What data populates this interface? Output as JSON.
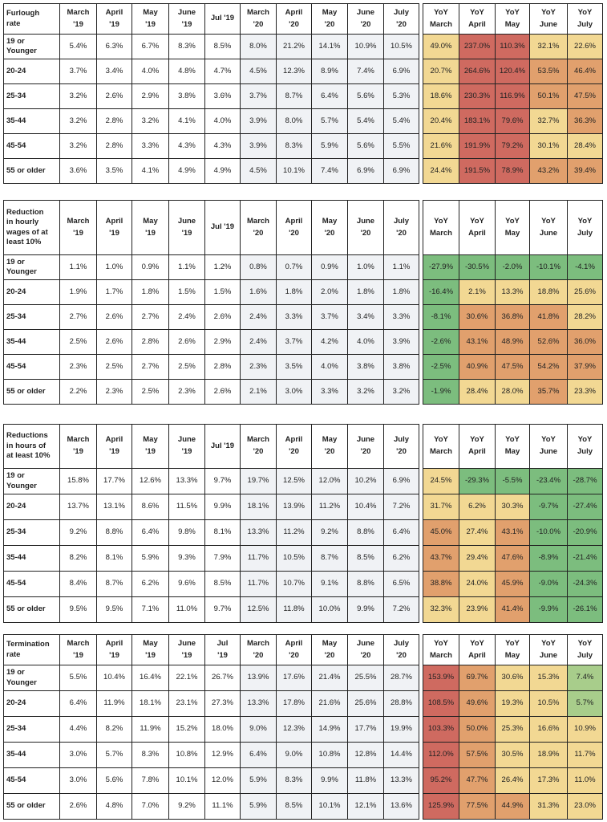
{
  "colors": {
    "red": "#cf6a60",
    "orange": "#e1a06d",
    "yellow": "#f2d893",
    "lightgreen": "#a8cd8b",
    "green": "#7cbd7e",
    "current_year_shade": "#f0f2f5"
  },
  "columns": [
    "March\n'19",
    "April\n'19",
    "May\n'19",
    "June\n'19",
    "Jul '19",
    "March\n'20",
    "April\n'20",
    "May\n'20",
    "June\n'20",
    "July\n'20"
  ],
  "yoy_columns": [
    "YoY\nMarch",
    "YoY\nApril",
    "YoY\nMay",
    "YoY\nJune",
    "YoY\nJuly"
  ],
  "sections": [
    {
      "title": "Furlough\nrate",
      "columns": [
        "March\n'19",
        "April\n'19",
        "May\n'19",
        "June\n'19",
        "Jul '19",
        "March\n'20",
        "April\n'20",
        "May\n'20",
        "June\n'20",
        "July\n'20"
      ],
      "rows": [
        {
          "label": "19 or\nYounger",
          "values": [
            "5.4%",
            "6.3%",
            "6.7%",
            "8.3%",
            "8.5%",
            "8.0%",
            "21.2%",
            "14.1%",
            "10.9%",
            "10.5%"
          ],
          "yoy": [
            "49.0%",
            "237.0%",
            "110.3%",
            "32.1%",
            "22.6%"
          ],
          "yoy_colors": [
            "#f2d893",
            "#cf6a60",
            "#cf6a60",
            "#f2d893",
            "#f2d893"
          ]
        },
        {
          "label": "20-24",
          "values": [
            "3.7%",
            "3.4%",
            "4.0%",
            "4.8%",
            "4.7%",
            "4.5%",
            "12.3%",
            "8.9%",
            "7.4%",
            "6.9%"
          ],
          "yoy": [
            "20.7%",
            "264.6%",
            "120.4%",
            "53.5%",
            "46.4%"
          ],
          "yoy_colors": [
            "#f2d893",
            "#cf6a60",
            "#cf6a60",
            "#e1a06d",
            "#e1a06d"
          ]
        },
        {
          "label": "25-34",
          "values": [
            "3.2%",
            "2.6%",
            "2.9%",
            "3.8%",
            "3.6%",
            "3.7%",
            "8.7%",
            "6.4%",
            "5.6%",
            "5.3%"
          ],
          "yoy": [
            "18.6%",
            "230.3%",
            "116.9%",
            "50.1%",
            "47.5%"
          ],
          "yoy_colors": [
            "#f2d893",
            "#cf6a60",
            "#cf6a60",
            "#e1a06d",
            "#e1a06d"
          ]
        },
        {
          "label": "35-44",
          "values": [
            "3.2%",
            "2.8%",
            "3.2%",
            "4.1%",
            "4.0%",
            "3.9%",
            "8.0%",
            "5.7%",
            "5.4%",
            "5.4%"
          ],
          "yoy": [
            "20.4%",
            "183.1%",
            "79.6%",
            "32.7%",
            "36.3%"
          ],
          "yoy_colors": [
            "#f2d893",
            "#cf6a60",
            "#cf6a60",
            "#f2d893",
            "#e1a06d"
          ]
        },
        {
          "label": "45-54",
          "values": [
            "3.2%",
            "2.8%",
            "3.3%",
            "4.3%",
            "4.3%",
            "3.9%",
            "8.3%",
            "5.9%",
            "5.6%",
            "5.5%"
          ],
          "yoy": [
            "21.6%",
            "191.9%",
            "79.2%",
            "30.1%",
            "28.4%"
          ],
          "yoy_colors": [
            "#f2d893",
            "#cf6a60",
            "#cf6a60",
            "#f2d893",
            "#f2d893"
          ]
        },
        {
          "label": "55 or older",
          "values": [
            "3.6%",
            "3.5%",
            "4.1%",
            "4.9%",
            "4.9%",
            "4.5%",
            "10.1%",
            "7.4%",
            "6.9%",
            "6.9%"
          ],
          "yoy": [
            "24.4%",
            "191.5%",
            "78.9%",
            "43.2%",
            "39.4%"
          ],
          "yoy_colors": [
            "#f2d893",
            "#cf6a60",
            "#cf6a60",
            "#e1a06d",
            "#e1a06d"
          ]
        }
      ]
    },
    {
      "title": "Reduction\nin hourly\nwages of at\nleast 10%",
      "columns": [
        "March\n'19",
        "April\n'19",
        "May\n'19",
        "June\n'19",
        "Jul '19",
        "March\n'20",
        "April\n'20",
        "May\n'20",
        "June\n'20",
        "July\n'20"
      ],
      "rows": [
        {
          "label": "19 or\nYounger",
          "values": [
            "1.1%",
            "1.0%",
            "0.9%",
            "1.1%",
            "1.2%",
            "0.8%",
            "0.7%",
            "0.9%",
            "1.0%",
            "1.1%"
          ],
          "yoy": [
            "-27.9%",
            "-30.5%",
            "-2.0%",
            "-10.1%",
            "-4.1%"
          ],
          "yoy_colors": [
            "#7cbd7e",
            "#7cbd7e",
            "#7cbd7e",
            "#7cbd7e",
            "#7cbd7e"
          ]
        },
        {
          "label": "20-24",
          "values": [
            "1.9%",
            "1.7%",
            "1.8%",
            "1.5%",
            "1.5%",
            "1.6%",
            "1.8%",
            "2.0%",
            "1.8%",
            "1.8%"
          ],
          "yoy": [
            "-16.4%",
            "2.1%",
            "13.3%",
            "18.8%",
            "25.6%"
          ],
          "yoy_colors": [
            "#7cbd7e",
            "#f2d893",
            "#f2d893",
            "#f2d893",
            "#f2d893"
          ]
        },
        {
          "label": "25-34",
          "values": [
            "2.7%",
            "2.6%",
            "2.7%",
            "2.4%",
            "2.6%",
            "2.4%",
            "3.3%",
            "3.7%",
            "3.4%",
            "3.3%"
          ],
          "yoy": [
            "-8.1%",
            "30.6%",
            "36.8%",
            "41.8%",
            "28.2%"
          ],
          "yoy_colors": [
            "#7cbd7e",
            "#e1a06d",
            "#e1a06d",
            "#e1a06d",
            "#f2d893"
          ]
        },
        {
          "label": "35-44",
          "values": [
            "2.5%",
            "2.6%",
            "2.8%",
            "2.6%",
            "2.9%",
            "2.4%",
            "3.7%",
            "4.2%",
            "4.0%",
            "3.9%"
          ],
          "yoy": [
            "-2.6%",
            "43.1%",
            "48.9%",
            "52.6%",
            "36.0%"
          ],
          "yoy_colors": [
            "#7cbd7e",
            "#e1a06d",
            "#e1a06d",
            "#e1a06d",
            "#e1a06d"
          ]
        },
        {
          "label": "45-54",
          "values": [
            "2.3%",
            "2.5%",
            "2.7%",
            "2.5%",
            "2.8%",
            "2.3%",
            "3.5%",
            "4.0%",
            "3.8%",
            "3.8%"
          ],
          "yoy": [
            "-2.5%",
            "40.9%",
            "47.5%",
            "54.2%",
            "37.9%"
          ],
          "yoy_colors": [
            "#7cbd7e",
            "#e1a06d",
            "#e1a06d",
            "#e1a06d",
            "#e1a06d"
          ]
        },
        {
          "label": "55 or older",
          "values": [
            "2.2%",
            "2.3%",
            "2.5%",
            "2.3%",
            "2.6%",
            "2.1%",
            "3.0%",
            "3.3%",
            "3.2%",
            "3.2%"
          ],
          "yoy": [
            "-1.9%",
            "28.4%",
            "28.0%",
            "35.7%",
            "23.3%"
          ],
          "yoy_colors": [
            "#7cbd7e",
            "#f2d893",
            "#f2d893",
            "#e1a06d",
            "#f2d893"
          ]
        }
      ]
    },
    {
      "title": "Reductions\nin hours of\nat least 10%",
      "columns": [
        "March\n'19",
        "April\n'19",
        "May\n'19",
        "June\n'19",
        "Jul '19",
        "March\n'20",
        "April\n'20",
        "May\n'20",
        "June\n'20",
        "July\n'20"
      ],
      "rows": [
        {
          "label": "19 or\nYounger",
          "values": [
            "15.8%",
            "17.7%",
            "12.6%",
            "13.3%",
            "9.7%",
            "19.7%",
            "12.5%",
            "12.0%",
            "10.2%",
            "6.9%"
          ],
          "yoy": [
            "24.5%",
            "-29.3%",
            "-5.5%",
            "-23.4%",
            "-28.7%"
          ],
          "yoy_colors": [
            "#f2d893",
            "#7cbd7e",
            "#7cbd7e",
            "#7cbd7e",
            "#7cbd7e"
          ]
        },
        {
          "label": "20-24",
          "values": [
            "13.7%",
            "13.1%",
            "8.6%",
            "11.5%",
            "9.9%",
            "18.1%",
            "13.9%",
            "11.2%",
            "10.4%",
            "7.2%"
          ],
          "yoy": [
            "31.7%",
            "6.2%",
            "30.3%",
            "-9.7%",
            "-27.4%"
          ],
          "yoy_colors": [
            "#f2d893",
            "#f2d893",
            "#f2d893",
            "#7cbd7e",
            "#7cbd7e"
          ]
        },
        {
          "label": "25-34",
          "values": [
            "9.2%",
            "8.8%",
            "6.4%",
            "9.8%",
            "8.1%",
            "13.3%",
            "11.2%",
            "9.2%",
            "8.8%",
            "6.4%"
          ],
          "yoy": [
            "45.0%",
            "27.4%",
            "43.1%",
            "-10.0%",
            "-20.9%"
          ],
          "yoy_colors": [
            "#e1a06d",
            "#f2d893",
            "#e1a06d",
            "#7cbd7e",
            "#7cbd7e"
          ]
        },
        {
          "label": "35-44",
          "values": [
            "8.2%",
            "8.1%",
            "5.9%",
            "9.3%",
            "7.9%",
            "11.7%",
            "10.5%",
            "8.7%",
            "8.5%",
            "6.2%"
          ],
          "yoy": [
            "43.7%",
            "29.4%",
            "47.6%",
            "-8.9%",
            "-21.4%"
          ],
          "yoy_colors": [
            "#e1a06d",
            "#f2d893",
            "#e1a06d",
            "#7cbd7e",
            "#7cbd7e"
          ]
        },
        {
          "label": "45-54",
          "values": [
            "8.4%",
            "8.7%",
            "6.2%",
            "9.6%",
            "8.5%",
            "11.7%",
            "10.7%",
            "9.1%",
            "8.8%",
            "6.5%"
          ],
          "yoy": [
            "38.8%",
            "24.0%",
            "45.9%",
            "-9.0%",
            "-24.3%"
          ],
          "yoy_colors": [
            "#e1a06d",
            "#f2d893",
            "#e1a06d",
            "#7cbd7e",
            "#7cbd7e"
          ]
        },
        {
          "label": "55 or older",
          "values": [
            "9.5%",
            "9.5%",
            "7.1%",
            "11.0%",
            "9.7%",
            "12.5%",
            "11.8%",
            "10.0%",
            "9.9%",
            "7.2%"
          ],
          "yoy": [
            "32.3%",
            "23.9%",
            "41.4%",
            "-9.9%",
            "-26.1%"
          ],
          "yoy_colors": [
            "#f2d893",
            "#f2d893",
            "#e1a06d",
            "#7cbd7e",
            "#7cbd7e"
          ]
        }
      ]
    },
    {
      "title": "Termination\nrate",
      "columns": [
        "March\n'19",
        "April\n'19",
        "May\n'19",
        "June\n'19",
        "Jul\n'19",
        "March\n'20",
        "April\n'20",
        "May\n'20",
        "June\n'20",
        "July\n'20"
      ],
      "rows": [
        {
          "label": "19 or\nYounger",
          "values": [
            "5.5%",
            "10.4%",
            "16.4%",
            "22.1%",
            "26.7%",
            "13.9%",
            "17.6%",
            "21.4%",
            "25.5%",
            "28.7%"
          ],
          "yoy": [
            "153.9%",
            "69.7%",
            "30.6%",
            "15.3%",
            "7.4%"
          ],
          "yoy_colors": [
            "#cf6a60",
            "#e1a06d",
            "#f2d893",
            "#f2d893",
            "#a8cd8b"
          ]
        },
        {
          "label": "20-24",
          "values": [
            "6.4%",
            "11.9%",
            "18.1%",
            "23.1%",
            "27.3%",
            "13.3%",
            "17.8%",
            "21.6%",
            "25.6%",
            "28.8%"
          ],
          "yoy": [
            "108.5%",
            "49.6%",
            "19.3%",
            "10.5%",
            "5.7%"
          ],
          "yoy_colors": [
            "#cf6a60",
            "#e1a06d",
            "#f2d893",
            "#f2d893",
            "#a8cd8b"
          ]
        },
        {
          "label": "25-34",
          "values": [
            "4.4%",
            "8.2%",
            "11.9%",
            "15.2%",
            "18.0%",
            "9.0%",
            "12.3%",
            "14.9%",
            "17.7%",
            "19.9%"
          ],
          "yoy": [
            "103.3%",
            "50.0%",
            "25.3%",
            "16.6%",
            "10.9%"
          ],
          "yoy_colors": [
            "#cf6a60",
            "#e1a06d",
            "#f2d893",
            "#f2d893",
            "#f2d893"
          ]
        },
        {
          "label": "35-44",
          "values": [
            "3.0%",
            "5.7%",
            "8.3%",
            "10.8%",
            "12.9%",
            "6.4%",
            "9.0%",
            "10.8%",
            "12.8%",
            "14.4%"
          ],
          "yoy": [
            "112.0%",
            "57.5%",
            "30.5%",
            "18.9%",
            "11.7%"
          ],
          "yoy_colors": [
            "#cf6a60",
            "#e1a06d",
            "#f2d893",
            "#f2d893",
            "#f2d893"
          ]
        },
        {
          "label": "45-54",
          "values": [
            "3.0%",
            "5.6%",
            "7.8%",
            "10.1%",
            "12.0%",
            "5.9%",
            "8.3%",
            "9.9%",
            "11.8%",
            "13.3%"
          ],
          "yoy": [
            "95.2%",
            "47.7%",
            "26.4%",
            "17.3%",
            "11.0%"
          ],
          "yoy_colors": [
            "#cf6a60",
            "#e1a06d",
            "#f2d893",
            "#f2d893",
            "#f2d893"
          ]
        },
        {
          "label": "55 or older",
          "values": [
            "2.6%",
            "4.8%",
            "7.0%",
            "9.2%",
            "11.1%",
            "5.9%",
            "8.5%",
            "10.1%",
            "12.1%",
            "13.6%"
          ],
          "yoy": [
            "125.9%",
            "77.5%",
            "44.9%",
            "31.3%",
            "23.0%"
          ],
          "yoy_colors": [
            "#cf6a60",
            "#e1a06d",
            "#e1a06d",
            "#f2d893",
            "#f2d893"
          ]
        }
      ]
    }
  ]
}
